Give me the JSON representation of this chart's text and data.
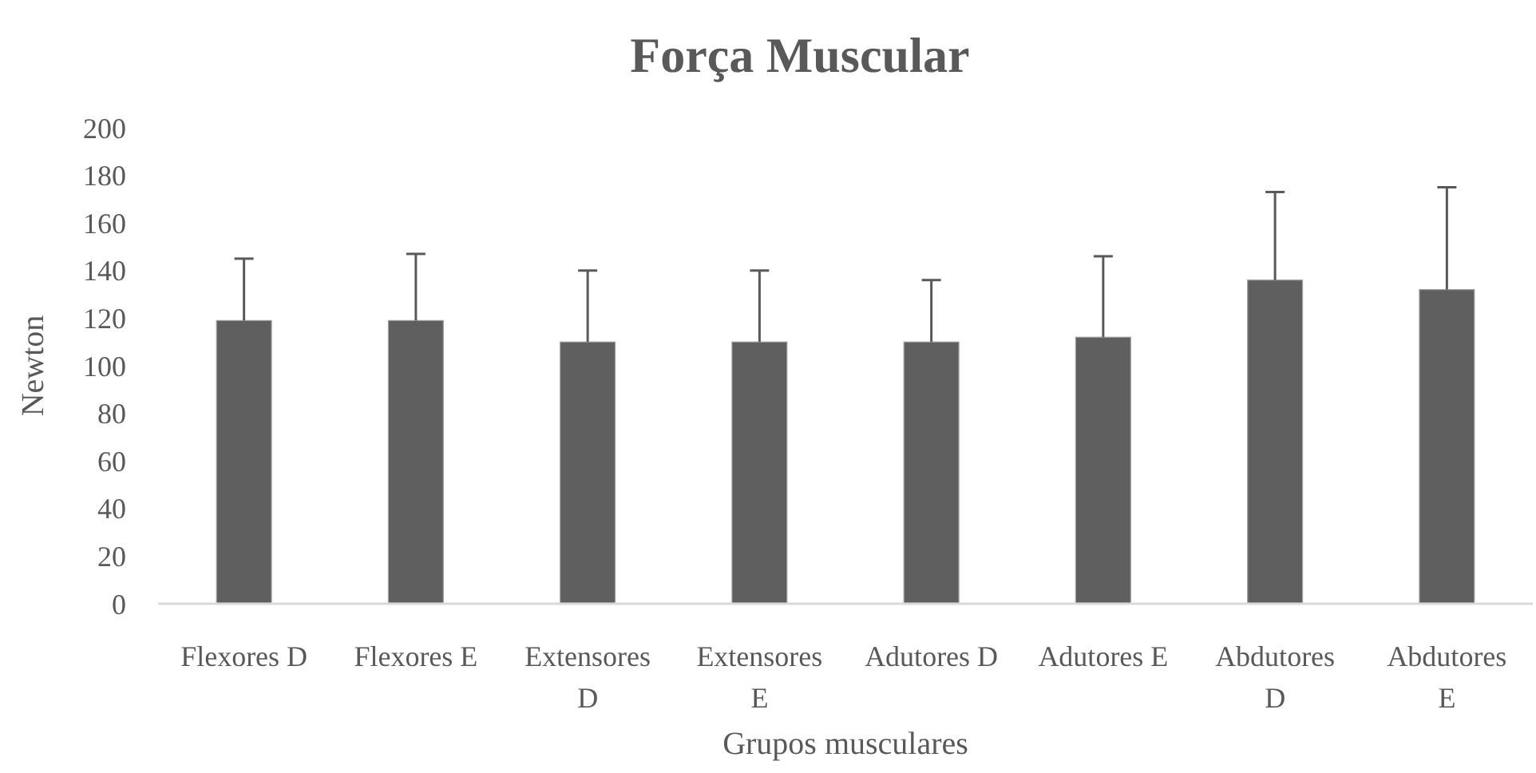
{
  "chart_data": {
    "type": "bar",
    "title": "Força Muscular",
    "xlabel": "Grupos musculares",
    "ylabel": "Newton",
    "categories": [
      "Flexores D",
      "Flexores E",
      "Extensores D",
      "Extensores E",
      "Adutores D",
      "Adutores E",
      "Abdutores D",
      "Abdutores E"
    ],
    "values": [
      119,
      119,
      110,
      110,
      110,
      112,
      136,
      132
    ],
    "errors": [
      [
        119,
        145
      ],
      [
        119,
        147
      ],
      [
        110,
        140
      ],
      [
        110,
        140
      ],
      [
        110,
        136
      ],
      [
        112,
        146
      ],
      [
        136,
        173
      ],
      [
        132,
        175
      ]
    ],
    "color": "#5f5f5f",
    "ylim": [
      0,
      200
    ],
    "yticks": [
      0,
      20,
      40,
      60,
      80,
      100,
      120,
      140,
      160,
      180,
      200
    ],
    "grid": false
  }
}
